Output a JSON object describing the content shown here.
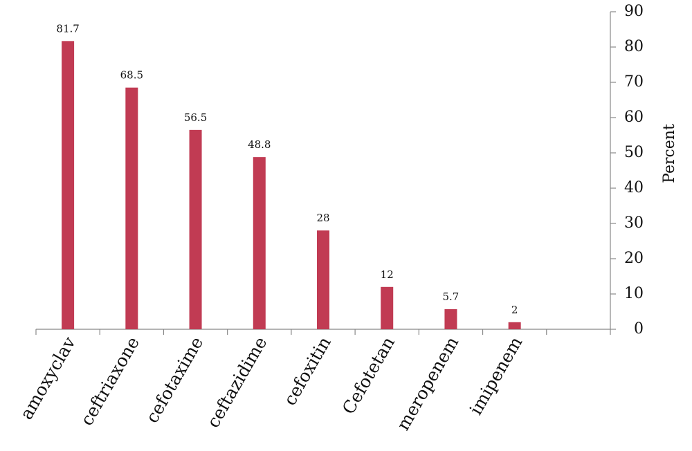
{
  "chart_data": {
    "type": "bar",
    "y_label": "Percent",
    "categories": [
      "amoxyclav",
      "ceftriaxone",
      "cefotaxime",
      "ceftazidime",
      "cefoxitin",
      "Cefotetan",
      "meropenem",
      "imipenem"
    ],
    "values": [
      81.7,
      68.5,
      56.5,
      48.8,
      28,
      12,
      5.7,
      2
    ],
    "color": "#c13b53",
    "ylim": [
      0,
      90
    ],
    "yticks": [
      0,
      10,
      20,
      30,
      40,
      50,
      60,
      70,
      80,
      90
    ],
    "y_axis_side": "right"
  }
}
